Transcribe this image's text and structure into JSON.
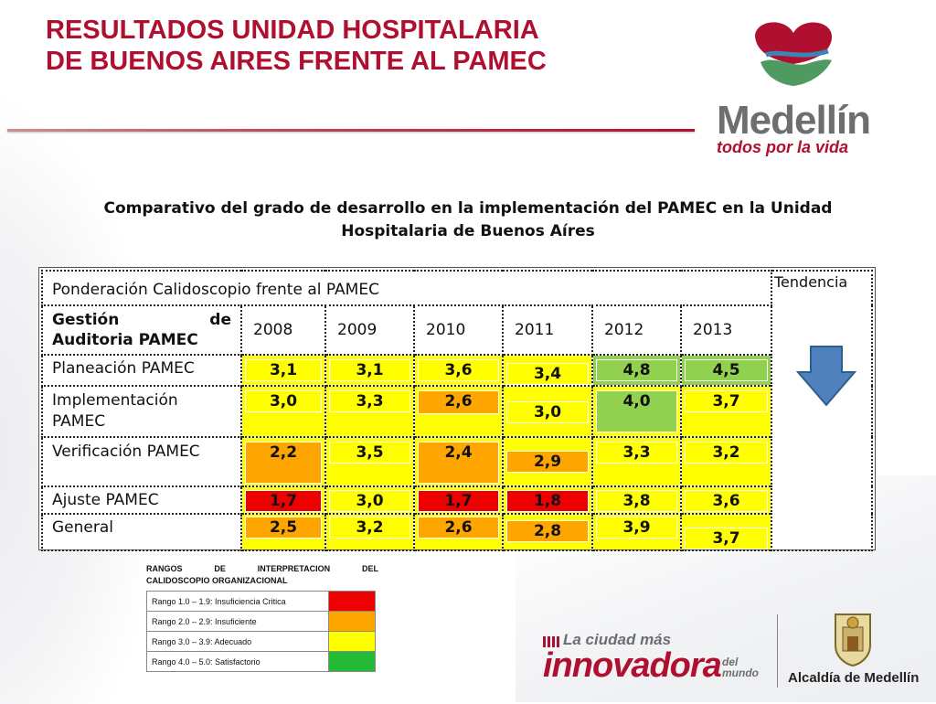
{
  "header": {
    "title_line1": "RESULTADOS UNIDAD HOSPITALARIA",
    "title_line2": "DE BUENOS AIRES FRENTE AL PAMEC"
  },
  "logo": {
    "word": "Medellín",
    "sub": "todos por la vida"
  },
  "subtitle": {
    "line1": "Comparativo del grado de desarrollo en la implementación del PAMEC en la Unidad",
    "line2": "Hospitalaria de Buenos Aíres"
  },
  "table": {
    "caption": "Ponderación Calidoscopio frente al PAMEC",
    "tendencia": "Tendencia",
    "tendencia_icon": "down-arrow-icon",
    "header_label_a": "Gestión",
    "header_label_b": "de",
    "header_label_c": "Auditoria PAMEC",
    "years": [
      "2008",
      "2009",
      "2010",
      "2011",
      "2012",
      "2013"
    ],
    "rows": [
      {
        "label": "Planeación PAMEC",
        "values": [
          "3,1",
          "3,1",
          "3,6",
          "3,4",
          "4,8",
          "4,5"
        ],
        "levels": [
          "y",
          "y",
          "y",
          "y",
          "g",
          "g"
        ]
      },
      {
        "label": "Implementación PAMEC",
        "values": [
          "3,0",
          "3,3",
          "2,6",
          "3,0",
          "4,0",
          "3,7"
        ],
        "levels": [
          "y",
          "y",
          "o",
          "y",
          "g",
          "y"
        ]
      },
      {
        "label": "Verificación PAMEC",
        "values": [
          "2,2",
          "3,5",
          "2,4",
          "2,9",
          "3,3",
          "3,2"
        ],
        "levels": [
          "o",
          "y",
          "o",
          "o",
          "y",
          "y"
        ]
      },
      {
        "label": "Ajuste PAMEC",
        "values": [
          "1,7",
          "3,0",
          "1,7",
          "1,8",
          "3,8",
          "3,6"
        ],
        "levels": [
          "r",
          "y",
          "r",
          "r",
          "y",
          "y"
        ]
      },
      {
        "label": "General",
        "values": [
          "2,5",
          "3,2",
          "2,6",
          "2,8",
          "3,9",
          "3,7"
        ],
        "levels": [
          "o",
          "y",
          "o",
          "o",
          "y",
          "y"
        ]
      }
    ]
  },
  "legend": {
    "title_words": [
      "RANGOS",
      "DE",
      "INTERPRETACION",
      "DEL"
    ],
    "title_line2": "CALIDOSCOPIO ORGANIZACIONAL",
    "items": [
      {
        "label": "Rango 1.0 – 1.9:  Insuficiencia Critica",
        "color": "#ee0000"
      },
      {
        "label": "Rango 2.0 – 2.9: Insuficiente",
        "color": "#ffa500"
      },
      {
        "label": "Rango 3.0 – 3.9: Adecuado",
        "color": "#ffff00"
      },
      {
        "label": "Rango 4.0 – 5.0: Satisfactorio",
        "color": "#22bb33"
      }
    ]
  },
  "footer": {
    "innov_top": "La ciudad más",
    "innov_main": "innovadora",
    "innov_del_1": "del",
    "innov_del_2": "mundo",
    "alcaldia": "Alcaldía de Medellín"
  },
  "colors": {
    "brand_red": "#b01030",
    "yellow": "#ffff00",
    "orange": "#ffa500",
    "red": "#ee0000",
    "green": "#92d050",
    "arrow_blue": "#4f81bd"
  }
}
